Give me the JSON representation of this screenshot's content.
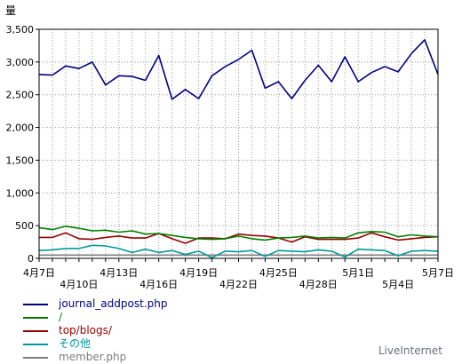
{
  "chart_data": {
    "type": "line",
    "ylabel": "量",
    "ylim": [
      0,
      3500
    ],
    "yticks": [
      0,
      500,
      1000,
      1500,
      2000,
      2500,
      3000,
      3500
    ],
    "ytick_labels": [
      "0",
      "500",
      "1,000",
      "1,500",
      "2,000",
      "2,500",
      "3,000",
      "3,500"
    ],
    "grid": true,
    "x": [
      "4月7日",
      "4月8日",
      "4月9日",
      "4月10日",
      "4月11日",
      "4月12日",
      "4月13日",
      "4月14日",
      "4月15日",
      "4月16日",
      "4月17日",
      "4月18日",
      "4月19日",
      "4月20日",
      "4月21日",
      "4月22日",
      "4月23日",
      "4月24日",
      "4月25日",
      "4月26日",
      "4月27日",
      "4月28日",
      "4月29日",
      "4月30日",
      "5月1日",
      "5月2日",
      "5月3日",
      "5月4日",
      "5月5日",
      "5月6日",
      "5月7日"
    ],
    "xtick_labels": [
      {
        "index": 0,
        "label": "4月7日",
        "row": 0
      },
      {
        "index": 3,
        "label": "4月10日",
        "row": 1
      },
      {
        "index": 6,
        "label": "4月13日",
        "row": 0
      },
      {
        "index": 9,
        "label": "4月16日",
        "row": 1
      },
      {
        "index": 12,
        "label": "4月19日",
        "row": 0
      },
      {
        "index": 15,
        "label": "4月22日",
        "row": 1
      },
      {
        "index": 18,
        "label": "4月25日",
        "row": 0
      },
      {
        "index": 21,
        "label": "4月28日",
        "row": 1
      },
      {
        "index": 24,
        "label": "5月1日",
        "row": 0
      },
      {
        "index": 27,
        "label": "5月4日",
        "row": 1
      },
      {
        "index": 30,
        "label": "5月7日",
        "row": 0
      }
    ],
    "legend_position": "bottom-left",
    "series": [
      {
        "name": "journal_addpost.php",
        "color": "#000080",
        "values": [
          2810,
          2800,
          2940,
          2900,
          3000,
          2650,
          2790,
          2780,
          2720,
          3100,
          2430,
          2580,
          2440,
          2790,
          2930,
          3040,
          3180,
          2600,
          2700,
          2440,
          2720,
          2950,
          2700,
          3080,
          2700,
          2840,
          2930,
          2850,
          3130,
          3340,
          2810
        ]
      },
      {
        "name": "/",
        "color": "#008000",
        "values": [
          470,
          440,
          490,
          460,
          420,
          430,
          400,
          420,
          370,
          380,
          350,
          320,
          300,
          290,
          300,
          340,
          300,
          280,
          310,
          320,
          340,
          310,
          320,
          310,
          390,
          410,
          400,
          330,
          360,
          340,
          330
        ]
      },
      {
        "name": "top/blogs/",
        "color": "#990000",
        "values": [
          320,
          320,
          390,
          300,
          290,
          320,
          340,
          310,
          310,
          380,
          300,
          230,
          310,
          310,
          300,
          370,
          350,
          340,
          310,
          250,
          330,
          290,
          290,
          290,
          310,
          390,
          330,
          280,
          300,
          320,
          330
        ]
      },
      {
        "name": "その他",
        "color": "#009999",
        "values": [
          120,
          130,
          150,
          150,
          200,
          190,
          150,
          90,
          140,
          90,
          120,
          60,
          110,
          10,
          110,
          100,
          120,
          30,
          120,
          110,
          100,
          130,
          110,
          20,
          140,
          130,
          120,
          40,
          110,
          120,
          110
        ]
      },
      {
        "name": "member.php",
        "color": "#7f7f7f",
        "values": [
          50,
          50,
          50,
          50,
          50,
          50,
          50,
          50,
          50,
          50,
          50,
          50,
          50,
          50,
          50,
          50,
          50,
          50,
          50,
          50,
          50,
          50,
          50,
          50,
          50,
          50,
          50,
          50,
          50,
          50,
          50
        ]
      }
    ]
  },
  "credit": "LiveInternet"
}
